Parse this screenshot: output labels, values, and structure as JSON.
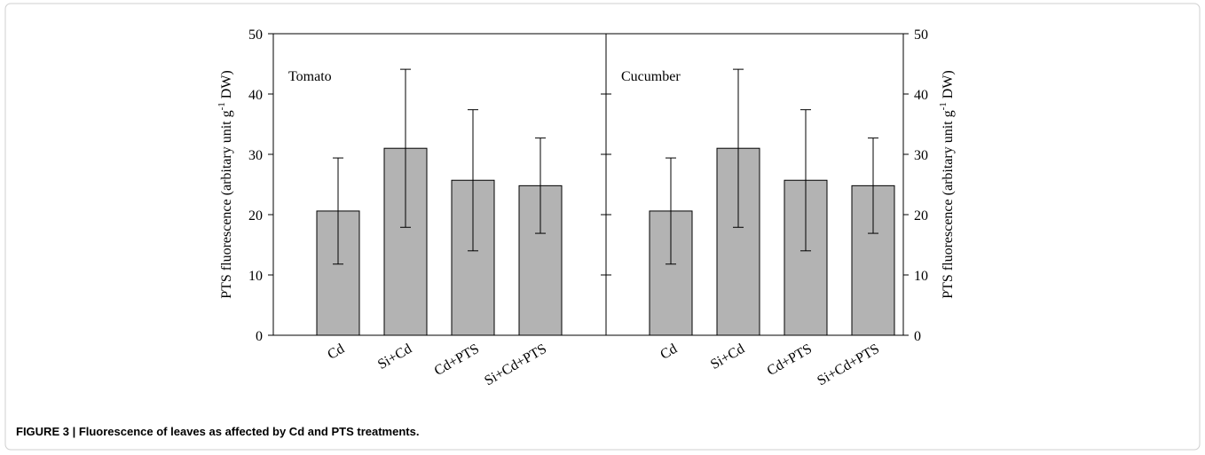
{
  "chart_data": [
    {
      "type": "bar",
      "title": "Tomato",
      "ylabel": [
        "PTS fluorescence (arbitary unit g",
        "-1",
        " DW)"
      ],
      "categories": [
        "Cd",
        "Si+Cd",
        "Cd+PTS",
        "Si+Cd+PTS"
      ],
      "values": [
        20.6,
        31.0,
        25.7,
        24.8
      ],
      "errors": [
        8.8,
        13.1,
        11.7,
        7.9
      ],
      "color": "#b3b3b3",
      "ylim": [
        0,
        50
      ],
      "yticks": [
        0,
        10,
        20,
        30,
        40,
        50
      ],
      "axis_side": "left"
    },
    {
      "type": "bar",
      "title": "Cucumber",
      "ylabel": [
        "PTS fluorescence (arbitary unit g",
        "-1",
        " DW)"
      ],
      "categories": [
        "Cd",
        "Si+Cd",
        "Cd+PTS",
        "Si+Cd+PTS"
      ],
      "values": [
        20.6,
        31.0,
        25.7,
        24.8
      ],
      "errors": [
        8.8,
        13.1,
        11.7,
        7.9
      ],
      "color": "#b3b3b3",
      "ylim": [
        0,
        50
      ],
      "yticks": [
        0,
        10,
        20,
        30,
        40,
        50
      ],
      "axis_side": "right"
    }
  ],
  "caption": "FIGURE 3 | Fluorescence of leaves as affected by Cd and PTS treatments."
}
